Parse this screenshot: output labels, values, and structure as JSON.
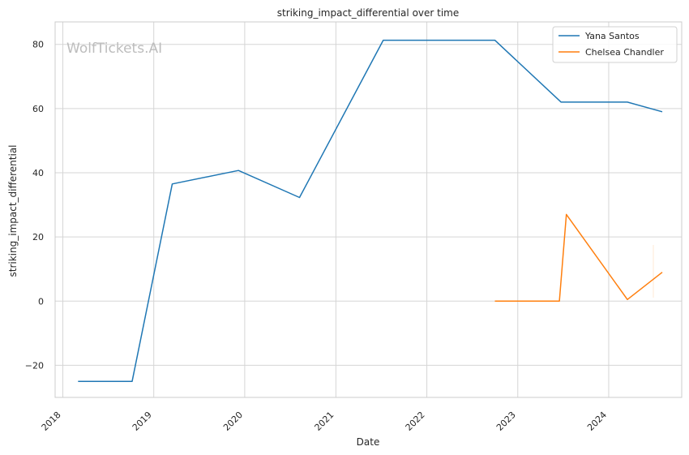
{
  "chart_data": {
    "type": "line",
    "title": "striking_impact_differential over time",
    "xlabel": "Date",
    "ylabel": "striking_impact_differential",
    "watermark": "WolfTickets.AI",
    "x_ticks": [
      "2018",
      "2019",
      "2020",
      "2021",
      "2022",
      "2023",
      "2024"
    ],
    "y_ticks": [
      -20,
      0,
      20,
      40,
      60,
      80
    ],
    "xlim": [
      "2017-12-01",
      "2024-10-20"
    ],
    "ylim": [
      -30,
      87
    ],
    "grid": true,
    "legend_position": "top-right",
    "series": [
      {
        "name": "Yana Santos",
        "color": "#1f77b4",
        "points": [
          [
            "2018-03-03",
            -25
          ],
          [
            "2018-10-06",
            -25
          ],
          [
            "2019-03-16",
            36.5
          ],
          [
            "2019-12-07",
            40.7
          ],
          [
            "2020-08-08",
            32.3
          ],
          [
            "2021-07-10",
            81.3
          ],
          [
            "2022-10-01",
            81.3
          ],
          [
            "2023-06-24",
            62
          ],
          [
            "2024-03-16",
            62
          ],
          [
            "2024-08-03",
            59
          ]
        ]
      },
      {
        "name": "Chelsea Chandler",
        "color": "#ff7f0e",
        "points": [
          [
            "2022-10-01",
            0
          ],
          [
            "2023-06-17",
            0
          ],
          [
            "2023-07-15",
            27
          ],
          [
            "2024-03-16",
            0.5
          ],
          [
            "2024-08-03",
            9
          ]
        ]
      }
    ]
  }
}
